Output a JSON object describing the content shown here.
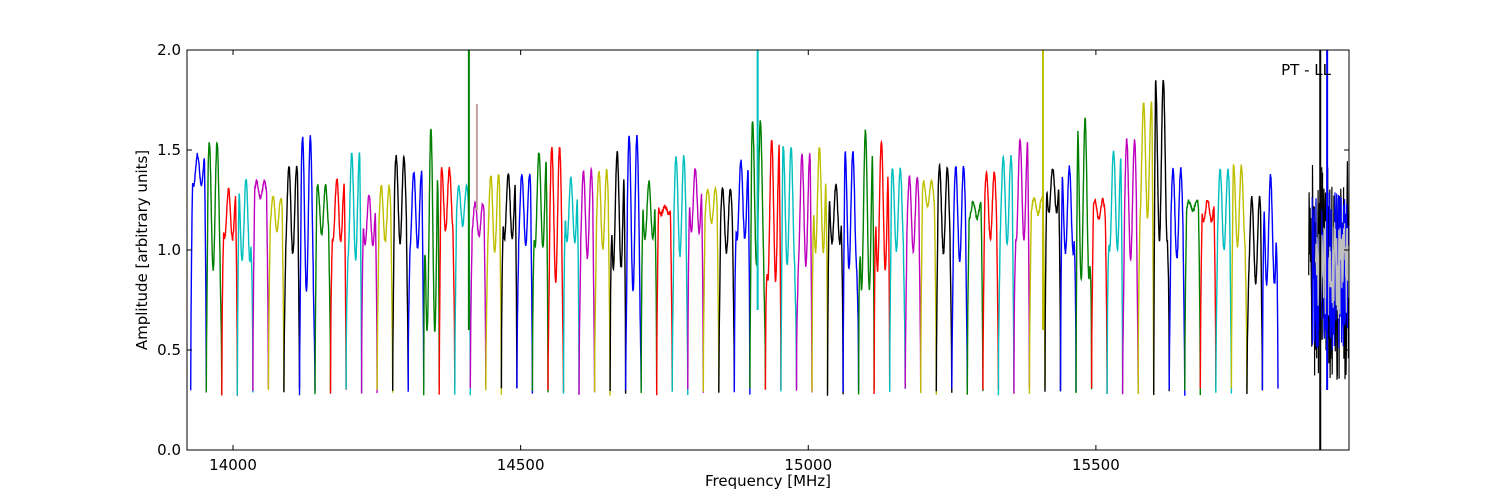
{
  "chart_data": {
    "type": "line",
    "title": "",
    "xlabel": "Frequency [MHz]",
    "ylabel": "Amplitude [arbitrary units]",
    "annotation": "PT - LL",
    "xlim": [
      13920,
      15940
    ],
    "ylim": [
      0.0,
      2.0
    ],
    "x_ticks": [
      14000,
      14500,
      15000,
      15500
    ],
    "y_ticks": [
      "0.0",
      "0.5",
      "1.0",
      "1.5",
      "2.0"
    ],
    "grid": false,
    "legend": "none",
    "channel_width_mhz": 27,
    "color_cycle": [
      "#0000ff",
      "#008000",
      "#ff0000",
      "#00bfbf",
      "#bf00bf",
      "#bfbf00",
      "#000000"
    ],
    "series": [
      {
        "center": 13940,
        "color": "#0000ff",
        "level": 1.4
      },
      {
        "center": 13967,
        "color": "#008000",
        "level": 1.22
      },
      {
        "center": 13994,
        "color": "#ff0000",
        "level": 1.18
      },
      {
        "center": 14021,
        "color": "#00bfbf",
        "level": 1.15
      },
      {
        "center": 14048,
        "color": "#bf00bf",
        "level": 1.3
      },
      {
        "center": 14075,
        "color": "#bfbf00",
        "level": 1.18
      },
      {
        "center": 14102,
        "color": "#000000",
        "level": 1.2
      },
      {
        "center": 14129,
        "color": "#0000ff",
        "level": 1.18
      },
      {
        "center": 14156,
        "color": "#008000",
        "level": 1.2
      },
      {
        "center": 14183,
        "color": "#ff0000",
        "level": 1.2
      },
      {
        "center": 14210,
        "color": "#00bfbf",
        "level": 1.22
      },
      {
        "center": 14237,
        "color": "#bf00bf",
        "level": 1.15
      },
      {
        "center": 14264,
        "color": "#bfbf00",
        "level": 1.18
      },
      {
        "center": 14291,
        "color": "#000000",
        "level": 1.25
      },
      {
        "center": 14318,
        "color": "#0000ff",
        "level": 1.2
      },
      {
        "center": 14345,
        "color": "#008000",
        "level": 1.1
      },
      {
        "center": 14372,
        "color": "#ff0000",
        "level": 1.25
      },
      {
        "center": 14399,
        "color": "#00bfbf",
        "level": 1.22
      },
      {
        "center": 14426,
        "color": "#bf00bf",
        "level": 1.15
      },
      {
        "center": 14453,
        "color": "#bfbf00",
        "level": 1.18
      },
      {
        "center": 14480,
        "color": "#000000",
        "level": 1.22
      },
      {
        "center": 14507,
        "color": "#0000ff",
        "level": 1.2
      },
      {
        "center": 14534,
        "color": "#008000",
        "level": 1.25
      },
      {
        "center": 14561,
        "color": "#ff0000",
        "level": 1.18
      },
      {
        "center": 14588,
        "color": "#00bfbf",
        "level": 1.2
      },
      {
        "center": 14615,
        "color": "#bf00bf",
        "level": 1.18
      },
      {
        "center": 14642,
        "color": "#bfbf00",
        "level": 1.2
      },
      {
        "center": 14669,
        "color": "#000000",
        "level": 1.2
      },
      {
        "center": 14696,
        "color": "#0000ff",
        "level": 1.18
      },
      {
        "center": 14723,
        "color": "#008000",
        "level": 1.2
      },
      {
        "center": 14750,
        "color": "#ff0000",
        "level": 1.2
      },
      {
        "center": 14777,
        "color": "#00bfbf",
        "level": 1.22
      },
      {
        "center": 14804,
        "color": "#bf00bf",
        "level": 1.25
      },
      {
        "center": 14831,
        "color": "#bfbf00",
        "level": 1.22
      },
      {
        "center": 14858,
        "color": "#000000",
        "level": 1.15
      },
      {
        "center": 14885,
        "color": "#0000ff",
        "level": 1.25
      },
      {
        "center": 14912,
        "color": "#008000",
        "level": 1.28
      },
      {
        "center": 14939,
        "color": "#ff0000",
        "level": 1.2
      },
      {
        "center": 14966,
        "color": "#00bfbf",
        "level": 1.22
      },
      {
        "center": 14993,
        "color": "#bf00bf",
        "level": 1.2
      },
      {
        "center": 15020,
        "color": "#bfbf00",
        "level": 1.25
      },
      {
        "center": 15047,
        "color": "#000000",
        "level": 1.18
      },
      {
        "center": 15074,
        "color": "#0000ff",
        "level": 1.2
      },
      {
        "center": 15101,
        "color": "#008000",
        "level": 1.2
      },
      {
        "center": 15128,
        "color": "#ff0000",
        "level": 1.22
      },
      {
        "center": 15155,
        "color": "#00bfbf",
        "level": 1.2
      },
      {
        "center": 15182,
        "color": "#bf00bf",
        "level": 1.18
      },
      {
        "center": 15209,
        "color": "#bfbf00",
        "level": 1.28
      },
      {
        "center": 15236,
        "color": "#000000",
        "level": 1.2
      },
      {
        "center": 15263,
        "color": "#0000ff",
        "level": 1.18
      },
      {
        "center": 15290,
        "color": "#008000",
        "level": 1.2
      },
      {
        "center": 15317,
        "color": "#ff0000",
        "level": 1.22
      },
      {
        "center": 15344,
        "color": "#00bfbf",
        "level": 1.25
      },
      {
        "center": 15371,
        "color": "#bf00bf",
        "level": 1.3
      },
      {
        "center": 15398,
        "color": "#bfbf00",
        "level": 1.22
      },
      {
        "center": 15425,
        "color": "#000000",
        "level": 1.3
      },
      {
        "center": 15452,
        "color": "#0000ff",
        "level": 1.2
      },
      {
        "center": 15479,
        "color": "#008000",
        "level": 1.25
      },
      {
        "center": 15506,
        "color": "#ff0000",
        "level": 1.2
      },
      {
        "center": 15533,
        "color": "#00bfbf",
        "level": 1.25
      },
      {
        "center": 15560,
        "color": "#bf00bf",
        "level": 1.25
      },
      {
        "center": 15587,
        "color": "#bfbf00",
        "level": 1.45
      },
      {
        "center": 15614,
        "color": "#000000",
        "level": 1.45
      },
      {
        "center": 15641,
        "color": "#0000ff",
        "level": 1.18
      },
      {
        "center": 15668,
        "color": "#008000",
        "level": 1.22
      },
      {
        "center": 15695,
        "color": "#ff0000",
        "level": 1.2
      },
      {
        "center": 15722,
        "color": "#00bfbf",
        "level": 1.2
      },
      {
        "center": 15749,
        "color": "#bfbf00",
        "level": 1.22
      },
      {
        "center": 15776,
        "color": "#000000",
        "level": 1.05
      },
      {
        "center": 15803,
        "color": "#0000ff",
        "level": 1.1
      }
    ],
    "spikes": [
      {
        "x": 14410,
        "ymin": 0.6,
        "ymax": 2.0,
        "color": "#008000"
      },
      {
        "x": 14424,
        "ymin": 1.2,
        "ymax": 1.73,
        "color": "#c8a0a0"
      },
      {
        "x": 14912,
        "ymin": 0.7,
        "ymax": 2.0,
        "color": "#00bfbf"
      },
      {
        "x": 15408,
        "ymin": 0.6,
        "ymax": 2.0,
        "color": "#bfbf00"
      },
      {
        "x": 15890,
        "ymin": 0.0,
        "ymax": 2.0,
        "color": "#000000"
      },
      {
        "x": 15902,
        "ymin": 0.3,
        "ymax": 2.0,
        "color": "#0000ff"
      }
    ]
  }
}
